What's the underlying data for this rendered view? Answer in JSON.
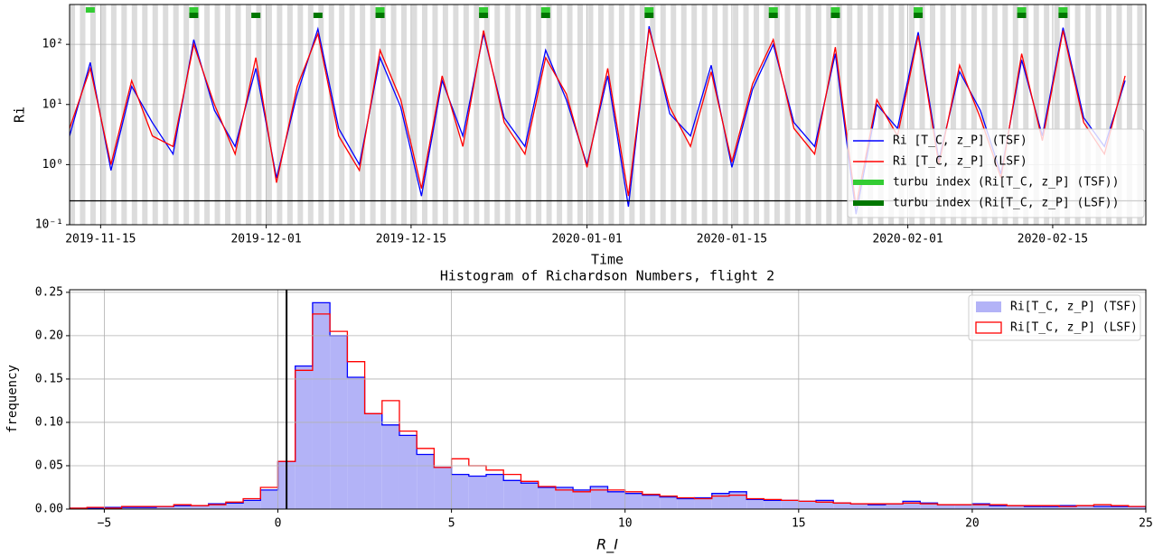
{
  "chart_data": [
    {
      "type": "line",
      "ylabel": "Ri",
      "xlabel": "Time",
      "log_y": true,
      "grid": true,
      "x": [
        "2019-11-12",
        "2019-11-14",
        "2019-11-16",
        "2019-11-18",
        "2019-11-20",
        "2019-11-22",
        "2019-11-24",
        "2019-11-26",
        "2019-11-28",
        "2019-11-30",
        "2019-12-02",
        "2019-12-04",
        "2019-12-06",
        "2019-12-08",
        "2019-12-10",
        "2019-12-12",
        "2019-12-14",
        "2019-12-16",
        "2019-12-18",
        "2019-12-20",
        "2019-12-22",
        "2019-12-24",
        "2019-12-26",
        "2019-12-28",
        "2019-12-30",
        "2020-01-01",
        "2020-01-03",
        "2020-01-05",
        "2020-01-07",
        "2020-01-09",
        "2020-01-11",
        "2020-01-13",
        "2020-01-15",
        "2020-01-17",
        "2020-01-19",
        "2020-01-21",
        "2020-01-23",
        "2020-01-25",
        "2020-01-27",
        "2020-01-29",
        "2020-01-31",
        "2020-02-02",
        "2020-02-04",
        "2020-02-06",
        "2020-02-08",
        "2020-02-10",
        "2020-02-12",
        "2020-02-14",
        "2020-02-16",
        "2020-02-18",
        "2020-02-20",
        "2020-02-22"
      ],
      "series": [
        {
          "name": "Ri [T_C, z_P] (TSF)",
          "color": "#0000ff",
          "values": [
            3,
            50,
            0.8,
            20,
            5,
            1.5,
            120,
            8,
            2,
            40,
            0.6,
            15,
            180,
            4,
            1,
            60,
            9,
            0.3,
            25,
            3,
            150,
            6,
            2,
            80,
            12,
            1,
            30,
            0.2,
            200,
            7,
            3,
            45,
            0.9,
            18,
            100,
            5,
            2,
            70,
            0.15,
            10,
            4,
            160,
            1.2,
            35,
            8,
            0.7,
            55,
            3,
            190,
            6,
            2,
            25
          ]
        },
        {
          "name": "Ri [T_C, z_P] (LSF)",
          "color": "#ff0000",
          "values": [
            4,
            40,
            1,
            25,
            3,
            2,
            100,
            10,
            1.5,
            60,
            0.5,
            20,
            150,
            3,
            0.8,
            80,
            12,
            0.4,
            30,
            2,
            170,
            5,
            1.5,
            60,
            15,
            0.9,
            40,
            0.3,
            180,
            9,
            2,
            35,
            1.1,
            22,
            120,
            4,
            1.5,
            90,
            0.2,
            12,
            3,
            140,
            1,
            45,
            6,
            0.6,
            70,
            2.5,
            170,
            5,
            1.5,
            30
          ]
        },
        {
          "name": "turbu index (Ri[T_C, z_P] (TSF))",
          "color": "#33cc33",
          "marker": true,
          "values": [
            null,
            1,
            null,
            null,
            null,
            null,
            1,
            null,
            null,
            null,
            null,
            null,
            null,
            null,
            null,
            1,
            null,
            null,
            null,
            null,
            1,
            null,
            null,
            1,
            null,
            null,
            null,
            null,
            1,
            null,
            null,
            null,
            null,
            null,
            1,
            null,
            null,
            1,
            null,
            null,
            null,
            1,
            null,
            null,
            null,
            null,
            1,
            null,
            1,
            null,
            null,
            null
          ]
        },
        {
          "name": "turbu index (Ri[T_C, z_P] (LSF))",
          "color": "#007700",
          "marker": true,
          "values": [
            null,
            null,
            null,
            null,
            null,
            null,
            1,
            null,
            null,
            1,
            null,
            null,
            1,
            null,
            null,
            1,
            null,
            null,
            null,
            null,
            1,
            null,
            null,
            1,
            null,
            null,
            null,
            null,
            1,
            null,
            null,
            null,
            null,
            null,
            1,
            null,
            null,
            1,
            null,
            null,
            null,
            1,
            null,
            null,
            null,
            null,
            1,
            null,
            1,
            null,
            null,
            null
          ]
        }
      ],
      "xlim": [
        "2019-11-12",
        "2020-02-24"
      ],
      "xticks": [
        "2019-11-15",
        "2019-12-01",
        "2019-12-15",
        "2020-01-01",
        "2020-01-15",
        "2020-02-01",
        "2020-02-15"
      ],
      "ylim": [
        0.1,
        460
      ],
      "yticks": [
        {
          "value": 0.1,
          "label": "10⁻¹"
        },
        {
          "value": 1,
          "label": "10⁰"
        },
        {
          "value": 10,
          "label": "10¹"
        },
        {
          "value": 100,
          "label": "10²"
        }
      ],
      "hline": 0.25,
      "legend": "lower right"
    },
    {
      "type": "histogram",
      "title": "Histogram of Richardson Numbers, flight 2",
      "xlabel": "R_I",
      "ylabel": "frequency",
      "grid": true,
      "bins": [
        -6,
        -5.5,
        -5,
        -4.5,
        -4,
        -3.5,
        -3,
        -2.5,
        -2,
        -1.5,
        -1,
        -0.5,
        0,
        0.5,
        1,
        1.5,
        2,
        2.5,
        3,
        3.5,
        4,
        4.5,
        5,
        5.5,
        6,
        6.5,
        7,
        7.5,
        8,
        8.5,
        9,
        9.5,
        10,
        10.5,
        11,
        11.5,
        12,
        12.5,
        13,
        13.5,
        14,
        14.5,
        15,
        15.5,
        16,
        16.5,
        17,
        17.5,
        18,
        18.5,
        19,
        19.5,
        20,
        20.5,
        21,
        21.5,
        22,
        22.5,
        23,
        23.5,
        24,
        24.5,
        25
      ],
      "series": [
        {
          "name": "Ri[T_C, z_P] (TSF)",
          "color": "#0000ff",
          "fill": "#b3b3f7",
          "values": [
            0.001,
            0.001,
            0.002,
            0.002,
            0.002,
            0.003,
            0.004,
            0.004,
            0.006,
            0.007,
            0.01,
            0.022,
            0.055,
            0.165,
            0.238,
            0.2,
            0.152,
            0.11,
            0.097,
            0.085,
            0.063,
            0.048,
            0.04,
            0.038,
            0.04,
            0.033,
            0.03,
            0.025,
            0.025,
            0.022,
            0.026,
            0.02,
            0.018,
            0.016,
            0.014,
            0.012,
            0.013,
            0.018,
            0.02,
            0.011,
            0.01,
            0.01,
            0.009,
            0.01,
            0.007,
            0.006,
            0.005,
            0.006,
            0.009,
            0.007,
            0.005,
            0.005,
            0.006,
            0.004,
            0.004,
            0.003,
            0.003,
            0.004,
            0.004,
            0.003,
            0.003,
            0.003
          ]
        },
        {
          "name": "Ri[T_C, z_P] (LSF)",
          "color": "#ff0000",
          "values": [
            0.001,
            0.002,
            0.001,
            0.003,
            0.003,
            0.003,
            0.005,
            0.004,
            0.005,
            0.008,
            0.012,
            0.025,
            0.055,
            0.16,
            0.225,
            0.205,
            0.17,
            0.11,
            0.125,
            0.09,
            0.07,
            0.048,
            0.058,
            0.05,
            0.045,
            0.04,
            0.032,
            0.026,
            0.022,
            0.02,
            0.022,
            0.022,
            0.02,
            0.017,
            0.015,
            0.013,
            0.012,
            0.015,
            0.016,
            0.012,
            0.011,
            0.01,
            0.009,
            0.008,
            0.007,
            0.006,
            0.006,
            0.006,
            0.007,
            0.006,
            0.005,
            0.005,
            0.005,
            0.005,
            0.004,
            0.004,
            0.004,
            0.003,
            0.004,
            0.005,
            0.004,
            0.003
          ]
        }
      ],
      "xlim": [
        -6,
        25
      ],
      "xticks": [
        {
          "value": -5,
          "label": "−5"
        },
        0,
        5,
        10,
        15,
        20,
        25
      ],
      "ylim": [
        0,
        0.253
      ],
      "yticks": [
        {
          "value": 0,
          "label": "0.00"
        },
        {
          "value": 0.05,
          "label": "0.05"
        },
        {
          "value": 0.1,
          "label": "0.10"
        },
        {
          "value": 0.15,
          "label": "0.15"
        },
        {
          "value": 0.2,
          "label": "0.20"
        },
        {
          "value": 0.25,
          "label": "0.25"
        }
      ],
      "vline": 0.25,
      "legend": "upper right"
    }
  ]
}
